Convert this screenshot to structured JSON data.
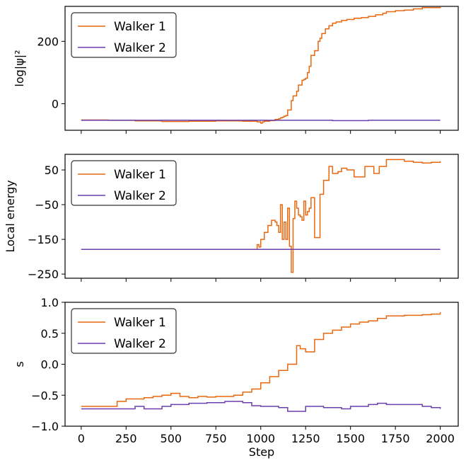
{
  "chart_data": [
    {
      "type": "line",
      "ylabel": "log|ψ|²",
      "xlim": [
        -90,
        2100
      ],
      "ylim": [
        -85,
        312
      ],
      "yticks": [
        0,
        200
      ],
      "ytick_labels": [
        "0",
        "200"
      ],
      "show_xtick_labels": false,
      "legend_position": "upper-left",
      "series": [
        {
          "name": "Walker 1",
          "color": "#e8670f",
          "step": true,
          "x": [
            0,
            150,
            300,
            450,
            600,
            750,
            900,
            980,
            1000,
            1010,
            1020,
            1050,
            1080,
            1100,
            1110,
            1120,
            1130,
            1140,
            1150,
            1170,
            1180,
            1200,
            1210,
            1230,
            1240,
            1250,
            1260,
            1270,
            1280,
            1300,
            1320,
            1330,
            1340,
            1360,
            1380,
            1400,
            1420,
            1450,
            1480,
            1520,
            1560,
            1600,
            1640,
            1680,
            1700,
            1750,
            1800,
            1850,
            1900,
            2000
          ],
          "y": [
            -52,
            -53,
            -55,
            -57,
            -56,
            -55,
            -56,
            -58,
            -62,
            -58,
            -56,
            -54,
            -50,
            -48,
            -45,
            -43,
            -40,
            -38,
            -20,
            10,
            25,
            40,
            60,
            75,
            78,
            82,
            100,
            120,
            155,
            170,
            200,
            210,
            225,
            240,
            250,
            258,
            262,
            267,
            270,
            274,
            276,
            280,
            285,
            290,
            295,
            298,
            300,
            304,
            308,
            310
          ]
        },
        {
          "name": "Walker 2",
          "color": "#6a3fae",
          "step": true,
          "x": [
            0,
            200,
            400,
            600,
            800,
            1000,
            1200,
            1400,
            1600,
            1800,
            2000
          ],
          "y": [
            -53,
            -53,
            -53,
            -53,
            -53,
            -53,
            -53,
            -54,
            -53,
            -53,
            -53
          ]
        }
      ]
    },
    {
      "type": "line",
      "ylabel": "Local energy",
      "xlim": [
        -90,
        2100
      ],
      "ylim": [
        -262,
        95
      ],
      "yticks": [
        50,
        -50,
        -150,
        -250
      ],
      "ytick_labels": [
        "50",
        "−50",
        "−150",
        "−250"
      ],
      "show_xtick_labels": false,
      "legend_position": "upper-left",
      "series": [
        {
          "name": "Walker 1",
          "color": "#e8670f",
          "step": true,
          "x": [
            0,
            980,
            990,
            1000,
            1020,
            1040,
            1060,
            1080,
            1090,
            1100,
            1110,
            1120,
            1130,
            1140,
            1150,
            1160,
            1170,
            1180,
            1190,
            1200,
            1210,
            1220,
            1230,
            1240,
            1250,
            1260,
            1270,
            1280,
            1300,
            1330,
            1350,
            1380,
            1400,
            1430,
            1450,
            1480,
            1520,
            1580,
            1630,
            1660,
            1700,
            1800,
            1850,
            1900,
            1950,
            2000
          ],
          "y": [
            -179,
            -165,
            -172,
            -150,
            -130,
            -110,
            -95,
            -100,
            -110,
            -130,
            -50,
            -150,
            -100,
            -150,
            -60,
            -170,
            -245,
            -90,
            -40,
            -60,
            -80,
            -85,
            -95,
            -40,
            -80,
            -70,
            -60,
            -30,
            -145,
            -20,
            20,
            60,
            40,
            45,
            55,
            50,
            30,
            60,
            40,
            60,
            80,
            75,
            72,
            70,
            72,
            75
          ]
        },
        {
          "name": "Walker 2",
          "color": "#6a3fae",
          "step": true,
          "x": [
            0,
            500,
            1000,
            1500,
            2000
          ],
          "y": [
            -179,
            -179,
            -179,
            -179,
            -179
          ]
        }
      ]
    },
    {
      "type": "line",
      "ylabel": "s",
      "xlabel": "Step",
      "xlim": [
        -90,
        2100
      ],
      "ylim": [
        -1.0,
        1.0
      ],
      "yticks": [
        1.0,
        0.5,
        0.0,
        -0.5,
        -1.0
      ],
      "ytick_labels": [
        "1.0",
        "0.5",
        "0.0",
        "−0.5",
        "−1.0"
      ],
      "xticks": [
        0,
        250,
        500,
        750,
        1000,
        1250,
        1500,
        1750,
        2000
      ],
      "xtick_labels": [
        "0",
        "250",
        "500",
        "750",
        "1000",
        "1250",
        "1500",
        "1750",
        "2000"
      ],
      "show_xtick_labels": true,
      "legend_position": "upper-left",
      "series": [
        {
          "name": "Walker 1",
          "color": "#e8670f",
          "step": true,
          "x": [
            0,
            100,
            200,
            250,
            350,
            400,
            450,
            500,
            550,
            600,
            650,
            700,
            750,
            800,
            850,
            900,
            950,
            1000,
            1050,
            1100,
            1150,
            1200,
            1220,
            1250,
            1300,
            1350,
            1400,
            1450,
            1500,
            1550,
            1600,
            1650,
            1700,
            1800,
            1900,
            1950,
            2000
          ],
          "y": [
            -0.68,
            -0.68,
            -0.6,
            -0.56,
            -0.54,
            -0.52,
            -0.5,
            -0.47,
            -0.52,
            -0.54,
            -0.52,
            -0.53,
            -0.52,
            -0.52,
            -0.5,
            -0.45,
            -0.4,
            -0.3,
            -0.2,
            -0.1,
            0.0,
            0.3,
            0.25,
            0.2,
            0.4,
            0.5,
            0.55,
            0.6,
            0.65,
            0.68,
            0.7,
            0.74,
            0.78,
            0.79,
            0.8,
            0.81,
            0.84
          ]
        },
        {
          "name": "Walker 2",
          "color": "#6a3fae",
          "step": true,
          "x": [
            0,
            250,
            300,
            350,
            450,
            500,
            600,
            700,
            800,
            900,
            950,
            1000,
            1100,
            1150,
            1250,
            1350,
            1450,
            1500,
            1600,
            1650,
            1700,
            1800,
            1900,
            1950,
            2000
          ],
          "y": [
            -0.72,
            -0.72,
            -0.68,
            -0.72,
            -0.68,
            -0.65,
            -0.63,
            -0.62,
            -0.6,
            -0.62,
            -0.67,
            -0.68,
            -0.7,
            -0.76,
            -0.68,
            -0.7,
            -0.72,
            -0.68,
            -0.65,
            -0.63,
            -0.65,
            -0.65,
            -0.68,
            -0.7,
            -0.72
          ]
        }
      ]
    }
  ]
}
